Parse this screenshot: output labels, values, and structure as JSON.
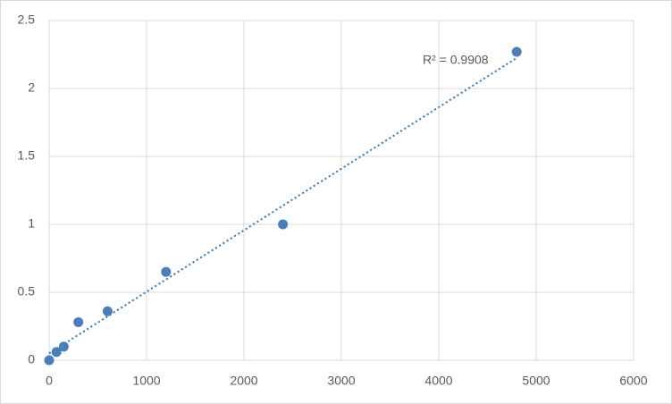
{
  "chart_data": {
    "type": "scatter",
    "x": [
      0,
      75,
      150,
      300,
      600,
      1200,
      2400,
      4800
    ],
    "values": [
      0,
      0.06,
      0.1,
      0.28,
      0.36,
      0.65,
      1.0,
      2.27
    ],
    "color": "#4a7ebb",
    "xlim": [
      0,
      6000
    ],
    "xticks": [
      0,
      1000,
      2000,
      3000,
      4000,
      5000,
      6000
    ],
    "ylim": [
      0,
      2.5
    ],
    "yticks": [
      0,
      0.5,
      1,
      1.5,
      2,
      2.5
    ],
    "grid": true,
    "trendline": "linear",
    "trendline_color": "#2e75b6",
    "trendline_label": "R² = 0.9908"
  }
}
